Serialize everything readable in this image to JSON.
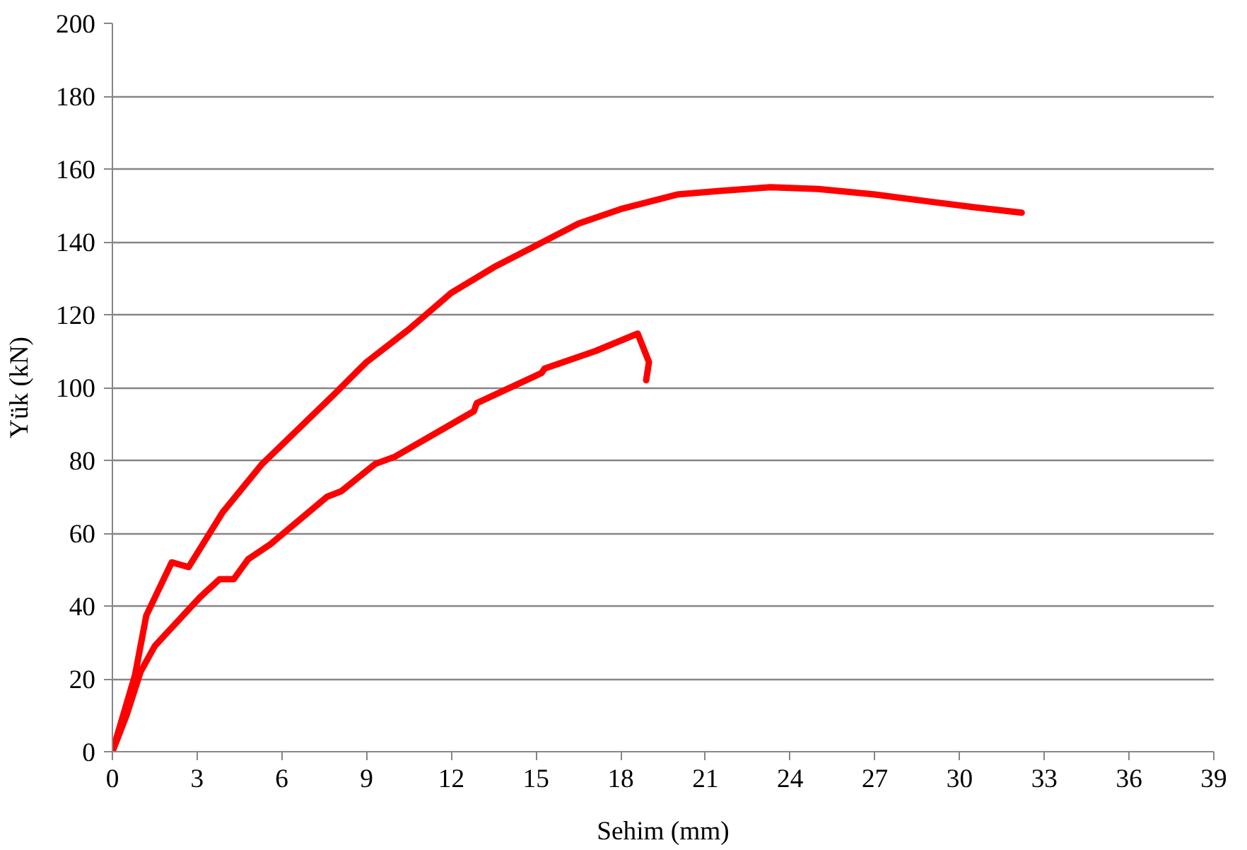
{
  "chart_data": {
    "type": "line",
    "xlabel": "Sehim (mm)",
    "ylabel": "Yük (kN)",
    "xlim": [
      0,
      39
    ],
    "xticks": [
      0,
      3,
      6,
      9,
      12,
      15,
      18,
      21,
      24,
      27,
      30,
      33,
      36,
      39
    ],
    "ylim": [
      0,
      200
    ],
    "yticks": [
      0,
      20,
      40,
      60,
      80,
      100,
      120,
      140,
      160,
      180,
      200
    ],
    "grid": "y",
    "marker": "none",
    "line_style": "solid",
    "series": [
      {
        "color": "#ff0000",
        "x": [
          0,
          0.8,
          1.2,
          2.1,
          2.7,
          3.9,
          5.3,
          7.9,
          9,
          10.5,
          12,
          13.5,
          15,
          16.5,
          18,
          20,
          21.5,
          23.3,
          25,
          27,
          29,
          30.5,
          32.2
        ],
        "values": [
          0,
          21,
          37.4,
          52,
          50.7,
          65.7,
          79,
          98.5,
          107,
          116,
          126,
          133,
          139,
          145,
          149,
          153,
          154,
          155,
          154.5,
          153,
          151,
          149.5,
          148
        ]
      },
      {
        "color": "#ff0000",
        "x": [
          0,
          0.5,
          1,
          1.5,
          1.95,
          3.1,
          3.8,
          4.3,
          4.8,
          5.6,
          7.6,
          8.1,
          9.3,
          10,
          12.8,
          12.9,
          15.2,
          15.3,
          17.1,
          18.6,
          19.0,
          18.9
        ],
        "values": [
          0,
          10,
          22,
          29,
          32.8,
          42.4,
          47.4,
          47.4,
          52.8,
          57,
          70,
          71.5,
          79,
          81,
          93.5,
          95.7,
          104,
          105.2,
          110,
          114.8,
          107,
          102
        ]
      }
    ]
  }
}
